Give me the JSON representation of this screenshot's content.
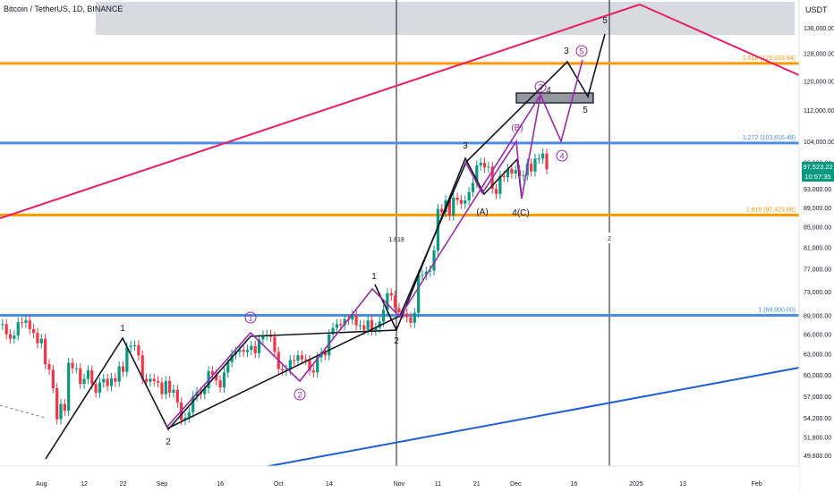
{
  "header": {
    "title": "Bitcoin / TetherUS, 1D, BINANCE",
    "currency": "USDT"
  },
  "current_price": {
    "price": "97,523.22",
    "countdown": "10:57:35"
  },
  "colors": {
    "up": "#089981",
    "down": "#f23645",
    "orange": "#ff9800",
    "blue": "#4a8de6",
    "crimson": "#d81b60",
    "purple": "#9c27b0",
    "dark": "#131722",
    "axis_text": "#131722"
  },
  "chart_data": {
    "type": "candlestick",
    "title": "Bitcoin / TetherUS, 1D, BINANCE",
    "y_axis_unit": "USDT",
    "y_scale": "log",
    "ylim": [
      47600,
      141000
    ],
    "y_ticks": [
      "136,000.00",
      "128,000.00",
      "120,000.00",
      "112,000.00",
      "104,000.00",
      "99,000.00",
      "93,000.00",
      "89,000.00",
      "85,000.00",
      "81,000.00",
      "77,000.00",
      "73,000.00",
      "69,000.00",
      "66,000.00",
      "63,000.00",
      "60,000.00",
      "57,000.00",
      "54,200.00",
      "51,800.00",
      "49,600.00"
    ],
    "x_ticks": [
      "Aug",
      "12",
      "22",
      "Sep",
      "16",
      "Oct",
      "14",
      "Nov",
      "11",
      "21",
      "Dec",
      "16",
      "2025",
      "13",
      "Feb"
    ],
    "x_tick_dates": [
      "2024-08-01",
      "2024-08-12",
      "2024-08-22",
      "2024-09-01",
      "2024-09-16",
      "2024-10-01",
      "2024-10-14",
      "2024-11-01",
      "2024-11-11",
      "2024-11-21",
      "2024-12-01",
      "2024-12-16",
      "2025-01-01",
      "2025-01-13",
      "2025-02-01"
    ],
    "xlim": [
      "2024-07-21",
      "2025-02-25"
    ],
    "candles_close": [
      [
        "2024-07-21",
        67500
      ],
      [
        "2024-07-22",
        67600
      ],
      [
        "2024-07-23",
        66000
      ],
      [
        "2024-07-24",
        65300
      ],
      [
        "2024-07-25",
        65800
      ],
      [
        "2024-07-26",
        67900
      ],
      [
        "2024-07-27",
        67800
      ],
      [
        "2024-07-28",
        68200
      ],
      [
        "2024-07-29",
        66800
      ],
      [
        "2024-07-30",
        66200
      ],
      [
        "2024-07-31",
        64600
      ],
      [
        "2024-08-01",
        65300
      ],
      [
        "2024-08-02",
        61500
      ],
      [
        "2024-08-03",
        60700
      ],
      [
        "2024-08-04",
        58100
      ],
      [
        "2024-08-05",
        54000
      ],
      [
        "2024-08-06",
        56000
      ],
      [
        "2024-08-07",
        55100
      ],
      [
        "2024-08-08",
        61700
      ],
      [
        "2024-08-09",
        60900
      ],
      [
        "2024-08-10",
        60900
      ],
      [
        "2024-08-11",
        58700
      ],
      [
        "2024-08-12",
        59400
      ],
      [
        "2024-08-13",
        60600
      ],
      [
        "2024-08-14",
        58700
      ],
      [
        "2024-08-15",
        57500
      ],
      [
        "2024-08-16",
        58900
      ],
      [
        "2024-08-17",
        59400
      ],
      [
        "2024-08-18",
        58400
      ],
      [
        "2024-08-19",
        59500
      ],
      [
        "2024-08-20",
        59000
      ],
      [
        "2024-08-21",
        61200
      ],
      [
        "2024-08-22",
        60400
      ],
      [
        "2024-08-23",
        64000
      ],
      [
        "2024-08-24",
        64200
      ],
      [
        "2024-08-25",
        64300
      ],
      [
        "2024-08-26",
        62800
      ],
      [
        "2024-08-27",
        59400
      ],
      [
        "2024-08-28",
        59000
      ],
      [
        "2024-08-29",
        59400
      ],
      [
        "2024-08-30",
        59100
      ],
      [
        "2024-08-31",
        58900
      ],
      [
        "2024-09-01",
        57300
      ],
      [
        "2024-09-02",
        59100
      ],
      [
        "2024-09-03",
        57500
      ],
      [
        "2024-09-04",
        57900
      ],
      [
        "2024-09-05",
        56200
      ],
      [
        "2024-09-06",
        53900
      ],
      [
        "2024-09-07",
        54200
      ],
      [
        "2024-09-08",
        54900
      ],
      [
        "2024-09-09",
        57000
      ],
      [
        "2024-09-10",
        57600
      ],
      [
        "2024-09-11",
        57300
      ],
      [
        "2024-09-12",
        58100
      ],
      [
        "2024-09-13",
        60500
      ],
      [
        "2024-09-14",
        60000
      ],
      [
        "2024-09-15",
        59200
      ],
      [
        "2024-09-16",
        58200
      ],
      [
        "2024-09-17",
        60300
      ],
      [
        "2024-09-18",
        61800
      ],
      [
        "2024-09-19",
        62900
      ],
      [
        "2024-09-20",
        63300
      ],
      [
        "2024-09-21",
        63600
      ],
      [
        "2024-09-22",
        63300
      ],
      [
        "2024-09-23",
        63600
      ],
      [
        "2024-09-24",
        64200
      ],
      [
        "2024-09-25",
        63100
      ],
      [
        "2024-09-26",
        65200
      ],
      [
        "2024-09-27",
        65800
      ],
      [
        "2024-09-28",
        65900
      ],
      [
        "2024-09-29",
        65600
      ],
      [
        "2024-09-30",
        63300
      ],
      [
        "2024-10-01",
        60800
      ],
      [
        "2024-10-02",
        60600
      ],
      [
        "2024-10-03",
        60700
      ],
      [
        "2024-10-04",
        62100
      ],
      [
        "2024-10-05",
        62000
      ],
      [
        "2024-10-06",
        62800
      ],
      [
        "2024-10-07",
        62200
      ],
      [
        "2024-10-08",
        62100
      ],
      [
        "2024-10-09",
        60600
      ],
      [
        "2024-10-10",
        60300
      ],
      [
        "2024-10-11",
        62500
      ],
      [
        "2024-10-12",
        63200
      ],
      [
        "2024-10-13",
        62800
      ],
      [
        "2024-10-14",
        66000
      ],
      [
        "2024-10-15",
        67000
      ],
      [
        "2024-10-16",
        67600
      ],
      [
        "2024-10-17",
        67400
      ],
      [
        "2024-10-18",
        68400
      ],
      [
        "2024-10-19",
        68300
      ],
      [
        "2024-10-20",
        69000
      ],
      [
        "2024-10-21",
        67400
      ],
      [
        "2024-10-22",
        67400
      ],
      [
        "2024-10-23",
        66700
      ],
      [
        "2024-10-24",
        68200
      ],
      [
        "2024-10-25",
        66600
      ],
      [
        "2024-10-26",
        67000
      ],
      [
        "2024-10-27",
        68000
      ],
      [
        "2024-10-28",
        69900
      ],
      [
        "2024-10-29",
        72700
      ],
      [
        "2024-10-30",
        72300
      ],
      [
        "2024-10-31",
        70200
      ],
      [
        "2024-11-01",
        69500
      ],
      [
        "2024-11-02",
        69300
      ],
      [
        "2024-11-03",
        68700
      ],
      [
        "2024-11-04",
        67800
      ],
      [
        "2024-11-05",
        69400
      ],
      [
        "2024-11-06",
        75800
      ],
      [
        "2024-11-07",
        75900
      ],
      [
        "2024-11-08",
        76500
      ],
      [
        "2024-11-09",
        76700
      ],
      [
        "2024-11-10",
        80400
      ],
      [
        "2024-11-11",
        88700
      ],
      [
        "2024-11-12",
        88000
      ],
      [
        "2024-11-13",
        90500
      ],
      [
        "2024-11-14",
        87300
      ],
      [
        "2024-11-15",
        91100
      ],
      [
        "2024-11-16",
        90600
      ],
      [
        "2024-11-17",
        89800
      ],
      [
        "2024-11-18",
        90500
      ],
      [
        "2024-11-19",
        92300
      ],
      [
        "2024-11-20",
        94300
      ],
      [
        "2024-11-21",
        98300
      ],
      [
        "2024-11-22",
        98900
      ],
      [
        "2024-11-23",
        97800
      ],
      [
        "2024-11-24",
        98000
      ],
      [
        "2024-11-25",
        93000
      ],
      [
        "2024-11-26",
        91900
      ],
      [
        "2024-11-27",
        95900
      ],
      [
        "2024-11-28",
        95600
      ],
      [
        "2024-11-29",
        97500
      ],
      [
        "2024-11-30",
        96400
      ],
      [
        "2024-12-01",
        97200
      ],
      [
        "2024-12-02",
        95800
      ],
      [
        "2024-12-03",
        96000
      ],
      [
        "2024-12-04",
        98700
      ],
      [
        "2024-12-05",
        96900
      ],
      [
        "2024-12-06",
        99900
      ],
      [
        "2024-12-07",
        99900
      ],
      [
        "2024-12-08",
        101100
      ],
      [
        "2024-12-09",
        97400
      ]
    ],
    "levels": [
      {
        "label": "1.618 (125,033.94)",
        "value": 125033.94
      },
      {
        "label": "1.272 (103,616.49)",
        "value": 103616.49
      },
      {
        "label": "1.618 (87,423.86)",
        "value": 87423.86
      },
      {
        "label": "1 (69,000.00)",
        "value": 69000
      }
    ],
    "wave_labels_black": [
      "1",
      "2",
      "1",
      "2",
      "3",
      "3",
      "4",
      "5",
      "4(C)",
      "(A)"
    ],
    "wave_labels_purple": [
      "1",
      "2",
      "3",
      "4",
      "5",
      "(B)",
      "5"
    ],
    "annotations": [
      "1.618",
      "2"
    ],
    "last_price": "97,523.22"
  }
}
